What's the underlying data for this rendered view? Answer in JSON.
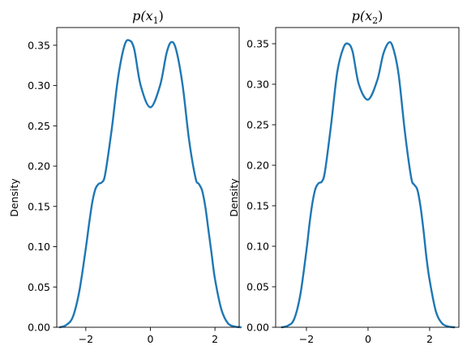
{
  "figure": {
    "background": "#ffffff",
    "line_color": "#1f77b4"
  },
  "chart_data": [
    {
      "type": "line",
      "title": "p(x₁)",
      "title_parts": {
        "base": "p(x",
        "sub": "1",
        "close": ")"
      },
      "xlabel": "",
      "ylabel": "Density",
      "xlim": [
        -2.9,
        2.75
      ],
      "ylim": [
        0,
        0.372
      ],
      "xticks": [
        -2,
        0,
        2
      ],
      "xtick_labels": [
        "−2",
        "0",
        "2"
      ],
      "yticks": [
        0.0,
        0.05,
        0.1,
        0.15,
        0.2,
        0.25,
        0.3,
        0.35
      ],
      "ytick_labels": [
        "0.00",
        "0.05",
        "0.10",
        "0.15",
        "0.20",
        "0.25",
        "0.30",
        "0.35"
      ],
      "grid": false,
      "series": [
        {
          "x": [
            -2.8,
            -2.6,
            -2.4,
            -2.2,
            -2.0,
            -1.9,
            -1.8,
            -1.7,
            -1.6,
            -1.5,
            -1.4,
            -1.2,
            -1.0,
            -0.8,
            -0.65,
            -0.5,
            -0.3,
            0.0,
            0.3,
            0.5,
            0.65,
            0.8,
            1.0,
            1.2,
            1.4,
            1.5,
            1.6,
            1.7,
            1.8,
            1.9,
            2.0,
            2.2,
            2.4,
            2.6,
            2.8
          ],
          "y": [
            0.0,
            0.003,
            0.013,
            0.045,
            0.098,
            0.128,
            0.155,
            0.172,
            0.178,
            0.18,
            0.19,
            0.245,
            0.31,
            0.35,
            0.356,
            0.345,
            0.3,
            0.273,
            0.3,
            0.34,
            0.354,
            0.344,
            0.3,
            0.232,
            0.185,
            0.178,
            0.17,
            0.15,
            0.12,
            0.09,
            0.06,
            0.022,
            0.005,
            0.001,
            0.0
          ]
        }
      ]
    },
    {
      "type": "line",
      "title": "p(x₂)",
      "title_parts": {
        "base": "p(x",
        "sub": "2",
        "close": ")"
      },
      "xlabel": "",
      "ylabel": "Density",
      "xlim": [
        -3.0,
        2.95
      ],
      "ylim": [
        0,
        0.37
      ],
      "xticks": [
        -2,
        0,
        2
      ],
      "xtick_labels": [
        "−2",
        "0",
        "2"
      ],
      "yticks": [
        0.0,
        0.05,
        0.1,
        0.15,
        0.2,
        0.25,
        0.3,
        0.35
      ],
      "ytick_labels": [
        "0.00",
        "0.05",
        "0.10",
        "0.15",
        "0.20",
        "0.25",
        "0.30",
        "0.35"
      ],
      "grid": false,
      "series": [
        {
          "x": [
            -2.8,
            -2.6,
            -2.4,
            -2.2,
            -2.0,
            -1.9,
            -1.8,
            -1.7,
            -1.6,
            -1.5,
            -1.4,
            -1.2,
            -1.0,
            -0.8,
            -0.65,
            -0.5,
            -0.3,
            0.0,
            0.3,
            0.5,
            0.7,
            0.85,
            1.0,
            1.2,
            1.4,
            1.5,
            1.6,
            1.7,
            1.8,
            1.9,
            2.0,
            2.2,
            2.4,
            2.6,
            2.8
          ],
          "y": [
            0.0,
            0.002,
            0.01,
            0.04,
            0.095,
            0.128,
            0.155,
            0.172,
            0.178,
            0.18,
            0.192,
            0.25,
            0.315,
            0.345,
            0.35,
            0.34,
            0.3,
            0.281,
            0.305,
            0.338,
            0.352,
            0.34,
            0.31,
            0.24,
            0.185,
            0.176,
            0.17,
            0.15,
            0.12,
            0.085,
            0.058,
            0.02,
            0.005,
            0.001,
            0.0
          ]
        }
      ]
    }
  ]
}
